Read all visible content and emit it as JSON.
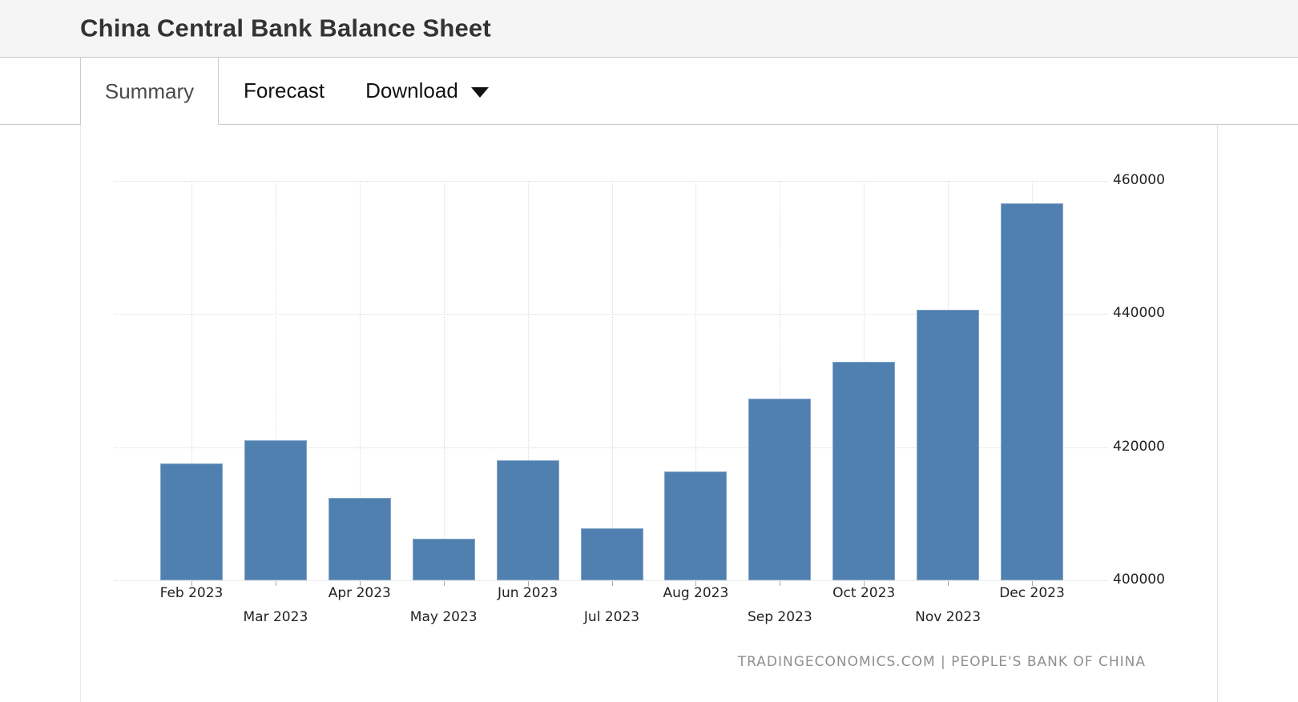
{
  "header": {
    "title": "China Central Bank Balance Sheet"
  },
  "tabs": {
    "summary": "Summary",
    "forecast": "Forecast",
    "download": "Download"
  },
  "footer": {
    "attribution": "TRADINGECONOMICS.COM | PEOPLE'S BANK OF CHINA"
  },
  "colors": {
    "bar": "#5080b0",
    "grid": "#d9d9d9",
    "axis_text": "#222222",
    "attribution_text": "#8f8f8f"
  },
  "chart_data": {
    "type": "bar",
    "title": "China Central Bank Balance Sheet",
    "categories": [
      "Feb 2023",
      "Mar 2023",
      "Apr 2023",
      "May 2023",
      "Jun 2023",
      "Jul 2023",
      "Aug 2023",
      "Sep 2023",
      "Oct 2023",
      "Nov 2023",
      "Dec 2023"
    ],
    "values": [
      417573,
      421043,
      412417,
      406223,
      418010,
      407833,
      416372,
      427293,
      432809,
      440672,
      456622
    ],
    "xlabel": "",
    "ylabel": "",
    "ylim": [
      400000,
      460000
    ],
    "yticks": [
      400000,
      420000,
      440000,
      460000
    ],
    "grid": "dotted horizontal and vertical",
    "legend": "none",
    "bar_color": "#5080b0",
    "x_label_rows": "staggered two rows, even months top row",
    "source_label": "TRADINGECONOMICS.COM | PEOPLE'S BANK OF CHINA"
  }
}
